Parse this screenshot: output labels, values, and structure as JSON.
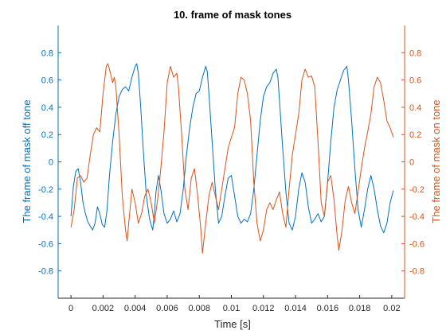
{
  "chart_data": {
    "type": "line",
    "title": "10. frame of mask tones",
    "xlabel": "Time [s]",
    "ylabel_left": "The frame of mask off tone",
    "ylabel_right": "The frame of mask on tone",
    "xlim": [
      -0.0008,
      0.0208
    ],
    "ylim": [
      -1,
      1
    ],
    "yticks": [
      -0.8,
      -0.6,
      -0.4,
      -0.2,
      0,
      0.2,
      0.4,
      0.6,
      0.8
    ],
    "ytick_labels": [
      "-0.8",
      "-0.6",
      "-0.4",
      "-0.2",
      "0",
      "0.2",
      "0.4",
      "0.6",
      "0.8"
    ],
    "xticks": [
      0,
      0.002,
      0.004,
      0.006,
      0.008,
      0.01,
      0.012,
      0.014,
      0.016,
      0.018,
      0.02
    ],
    "xtick_labels": [
      "0",
      "0.002",
      "0.004",
      "0.006",
      "0.008",
      "0.01",
      "0.012",
      "0.014",
      "0.016",
      "0.018",
      "0.02"
    ],
    "grid": false,
    "colors": {
      "left_axis": "#0072BD",
      "right_axis": "#D95319"
    },
    "series": [
      {
        "axis": "left",
        "color": "#0072BD",
        "points": [
          [
            0,
            -0.4
          ],
          [
            0.00015,
            -0.18
          ],
          [
            0.0003,
            -0.07
          ],
          [
            0.00045,
            -0.05
          ],
          [
            0.0006,
            -0.15
          ],
          [
            0.00075,
            -0.3
          ],
          [
            0.0009,
            -0.38
          ],
          [
            0.00105,
            -0.44
          ],
          [
            0.0012,
            -0.47
          ],
          [
            0.00135,
            -0.5
          ],
          [
            0.0015,
            -0.45
          ],
          [
            0.00165,
            -0.33
          ],
          [
            0.0018,
            -0.38
          ],
          [
            0.00195,
            -0.46
          ],
          [
            0.0021,
            -0.48
          ],
          [
            0.00225,
            -0.35
          ],
          [
            0.0024,
            -0.1
          ],
          [
            0.0026,
            0.15
          ],
          [
            0.0028,
            0.35
          ],
          [
            0.003,
            0.48
          ],
          [
            0.0032,
            0.53
          ],
          [
            0.0034,
            0.55
          ],
          [
            0.0036,
            0.52
          ],
          [
            0.0038,
            0.62
          ],
          [
            0.004,
            0.7
          ],
          [
            0.0041,
            0.72
          ],
          [
            0.0042,
            0.65
          ],
          [
            0.00435,
            0.4
          ],
          [
            0.0045,
            0.1
          ],
          [
            0.0047,
            -0.25
          ],
          [
            0.0049,
            -0.42
          ],
          [
            0.0051,
            -0.5
          ],
          [
            0.0052,
            -0.38
          ],
          [
            0.0053,
            -0.22
          ],
          [
            0.00545,
            -0.1
          ],
          [
            0.0056,
            -0.2
          ],
          [
            0.0058,
            -0.38
          ],
          [
            0.006,
            -0.45
          ],
          [
            0.0062,
            -0.42
          ],
          [
            0.0064,
            -0.36
          ],
          [
            0.0066,
            -0.44
          ],
          [
            0.0068,
            -0.38
          ],
          [
            0.007,
            -0.2
          ],
          [
            0.0072,
            0.05
          ],
          [
            0.0074,
            0.25
          ],
          [
            0.0076,
            0.4
          ],
          [
            0.0078,
            0.5
          ],
          [
            0.008,
            0.52
          ],
          [
            0.0082,
            0.62
          ],
          [
            0.0084,
            0.7
          ],
          [
            0.0085,
            0.66
          ],
          [
            0.0086,
            0.5
          ],
          [
            0.0088,
            0.15
          ],
          [
            0.009,
            -0.2
          ],
          [
            0.0092,
            -0.45
          ],
          [
            0.0094,
            -0.4
          ],
          [
            0.0096,
            -0.25
          ],
          [
            0.0098,
            -0.12
          ],
          [
            0.01,
            -0.1
          ],
          [
            0.0102,
            -0.25
          ],
          [
            0.0104,
            -0.4
          ],
          [
            0.0106,
            -0.45
          ],
          [
            0.0108,
            -0.42
          ],
          [
            0.011,
            -0.44
          ],
          [
            0.0112,
            -0.38
          ],
          [
            0.0114,
            -0.2
          ],
          [
            0.0116,
            0.05
          ],
          [
            0.0118,
            0.3
          ],
          [
            0.012,
            0.48
          ],
          [
            0.0122,
            0.55
          ],
          [
            0.0124,
            0.58
          ],
          [
            0.0126,
            0.65
          ],
          [
            0.0128,
            0.68
          ],
          [
            0.0129,
            0.62
          ],
          [
            0.013,
            0.45
          ],
          [
            0.0132,
            0.1
          ],
          [
            0.0134,
            -0.22
          ],
          [
            0.0136,
            -0.45
          ],
          [
            0.0138,
            -0.5
          ],
          [
            0.014,
            -0.4
          ],
          [
            0.0142,
            -0.2
          ],
          [
            0.0144,
            -0.08
          ],
          [
            0.0146,
            -0.15
          ],
          [
            0.0148,
            -0.33
          ],
          [
            0.015,
            -0.45
          ],
          [
            0.0152,
            -0.42
          ],
          [
            0.0154,
            -0.38
          ],
          [
            0.0156,
            -0.44
          ],
          [
            0.0158,
            -0.4
          ],
          [
            0.016,
            -0.15
          ],
          [
            0.0162,
            0.15
          ],
          [
            0.0164,
            0.4
          ],
          [
            0.0166,
            0.53
          ],
          [
            0.0168,
            0.6
          ],
          [
            0.017,
            0.67
          ],
          [
            0.0172,
            0.7
          ],
          [
            0.0173,
            0.6
          ],
          [
            0.0175,
            0.3
          ],
          [
            0.0177,
            -0.05
          ],
          [
            0.0179,
            -0.35
          ],
          [
            0.0181,
            -0.48
          ],
          [
            0.0183,
            -0.35
          ],
          [
            0.0185,
            -0.2
          ],
          [
            0.0187,
            -0.1
          ],
          [
            0.0189,
            -0.2
          ],
          [
            0.0191,
            -0.35
          ],
          [
            0.0193,
            -0.47
          ],
          [
            0.0195,
            -0.52
          ],
          [
            0.0197,
            -0.45
          ],
          [
            0.0199,
            -0.3
          ],
          [
            0.0201,
            -0.21
          ]
        ]
      },
      {
        "axis": "right",
        "color": "#D95319",
        "points": [
          [
            0,
            -0.48
          ],
          [
            0.0002,
            -0.35
          ],
          [
            0.0004,
            -0.12
          ],
          [
            0.0006,
            -0.1
          ],
          [
            0.0008,
            -0.15
          ],
          [
            0.001,
            -0.12
          ],
          [
            0.0012,
            0.05
          ],
          [
            0.0014,
            0.2
          ],
          [
            0.0016,
            0.25
          ],
          [
            0.0018,
            0.22
          ],
          [
            0.002,
            0.5
          ],
          [
            0.0022,
            0.7
          ],
          [
            0.0023,
            0.72
          ],
          [
            0.0024,
            0.68
          ],
          [
            0.0026,
            0.58
          ],
          [
            0.0027,
            0.62
          ],
          [
            0.0028,
            0.55
          ],
          [
            0.003,
            0.2
          ],
          [
            0.0032,
            -0.25
          ],
          [
            0.0034,
            -0.5
          ],
          [
            0.0035,
            -0.58
          ],
          [
            0.0036,
            -0.45
          ],
          [
            0.0038,
            -0.2
          ],
          [
            0.004,
            -0.3
          ],
          [
            0.0042,
            -0.45
          ],
          [
            0.0044,
            -0.38
          ],
          [
            0.0046,
            -0.25
          ],
          [
            0.0048,
            -0.2
          ],
          [
            0.005,
            -0.3
          ],
          [
            0.0052,
            -0.45
          ],
          [
            0.0054,
            -0.28
          ],
          [
            0.0056,
            -0.05
          ],
          [
            0.0058,
            0.22
          ],
          [
            0.006,
            0.58
          ],
          [
            0.0062,
            0.7
          ],
          [
            0.0064,
            0.62
          ],
          [
            0.0066,
            0.65
          ],
          [
            0.0067,
            0.55
          ],
          [
            0.0069,
            0.2
          ],
          [
            0.0071,
            -0.2
          ],
          [
            0.0073,
            -0.35
          ],
          [
            0.0075,
            -0.12
          ],
          [
            0.0077,
            -0.05
          ],
          [
            0.0079,
            -0.25
          ],
          [
            0.0081,
            -0.5
          ],
          [
            0.0082,
            -0.67
          ],
          [
            0.0084,
            -0.45
          ],
          [
            0.0086,
            -0.25
          ],
          [
            0.0088,
            -0.15
          ],
          [
            0.009,
            -0.25
          ],
          [
            0.0092,
            -0.35
          ],
          [
            0.0094,
            -0.2
          ],
          [
            0.0096,
            -0.05
          ],
          [
            0.0098,
            0.1
          ],
          [
            0.01,
            0.18
          ],
          [
            0.0102,
            0.25
          ],
          [
            0.0104,
            0.5
          ],
          [
            0.0106,
            0.62
          ],
          [
            0.0108,
            0.6
          ],
          [
            0.011,
            0.5
          ],
          [
            0.0112,
            0.3
          ],
          [
            0.0114,
            -0.15
          ],
          [
            0.0116,
            -0.45
          ],
          [
            0.0118,
            -0.58
          ],
          [
            0.012,
            -0.5
          ],
          [
            0.0122,
            -0.35
          ],
          [
            0.0124,
            -0.3
          ],
          [
            0.0126,
            -0.35
          ],
          [
            0.0128,
            -0.28
          ],
          [
            0.013,
            -0.22
          ],
          [
            0.0132,
            -0.38
          ],
          [
            0.0134,
            -0.48
          ],
          [
            0.0136,
            -0.2
          ],
          [
            0.0138,
            0.05
          ],
          [
            0.014,
            0.2
          ],
          [
            0.0142,
            0.35
          ],
          [
            0.0144,
            0.6
          ],
          [
            0.0146,
            0.68
          ],
          [
            0.0148,
            0.62
          ],
          [
            0.015,
            0.63
          ],
          [
            0.0152,
            0.55
          ],
          [
            0.0154,
            0.15
          ],
          [
            0.0156,
            -0.3
          ],
          [
            0.0158,
            -0.4
          ],
          [
            0.016,
            -0.15
          ],
          [
            0.0162,
            -0.1
          ],
          [
            0.0164,
            -0.28
          ],
          [
            0.0166,
            -0.55
          ],
          [
            0.0167,
            -0.65
          ],
          [
            0.0169,
            -0.5
          ],
          [
            0.0171,
            -0.28
          ],
          [
            0.0173,
            -0.18
          ],
          [
            0.0175,
            -0.3
          ],
          [
            0.0177,
            -0.38
          ],
          [
            0.0179,
            -0.22
          ],
          [
            0.0181,
            -0.05
          ],
          [
            0.0183,
            0.1
          ],
          [
            0.0185,
            0.22
          ],
          [
            0.0187,
            0.35
          ],
          [
            0.0189,
            0.55
          ],
          [
            0.0191,
            0.62
          ],
          [
            0.0193,
            0.58
          ],
          [
            0.0195,
            0.45
          ],
          [
            0.0197,
            0.3
          ],
          [
            0.0199,
            0.25
          ],
          [
            0.0201,
            0.18
          ]
        ]
      }
    ]
  }
}
